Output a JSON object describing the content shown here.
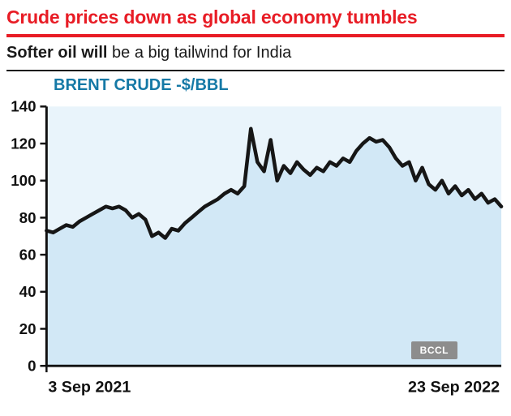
{
  "headline": "Crude prices down as global economy tumbles",
  "subtitle": {
    "bold": "Softer oil will",
    "rest": " be a big tailwind for India"
  },
  "watermark": "BCCL",
  "colors": {
    "headline_red": "#e81c25",
    "chart_title": "#1579a6",
    "line": "#161616",
    "area_fill": "#d2e8f6",
    "plot_bg": "#e9f4fb",
    "axis": "#111111"
  },
  "chart_data": {
    "type": "area",
    "title": "BRENT CRUDE -$/BBL",
    "xlabel": "",
    "ylabel": "$/BBL",
    "ylim": [
      0,
      140
    ],
    "yticks": [
      0,
      20,
      40,
      60,
      80,
      100,
      120,
      140
    ],
    "x_axis_labels": [
      "3 Sep 2021",
      "23 Sep 2022"
    ],
    "legend": "none",
    "grid": false,
    "values": [
      73,
      72,
      74,
      76,
      75,
      78,
      80,
      82,
      84,
      86,
      85,
      86,
      84,
      80,
      82,
      79,
      70,
      72,
      69,
      74,
      73,
      77,
      80,
      83,
      86,
      88,
      90,
      93,
      95,
      93,
      97,
      128,
      110,
      105,
      122,
      100,
      108,
      104,
      110,
      106,
      103,
      107,
      105,
      110,
      108,
      112,
      110,
      116,
      120,
      123,
      121,
      122,
      118,
      112,
      108,
      110,
      100,
      107,
      98,
      95,
      100,
      93,
      97,
      92,
      95,
      90,
      93,
      88,
      90,
      86
    ]
  }
}
